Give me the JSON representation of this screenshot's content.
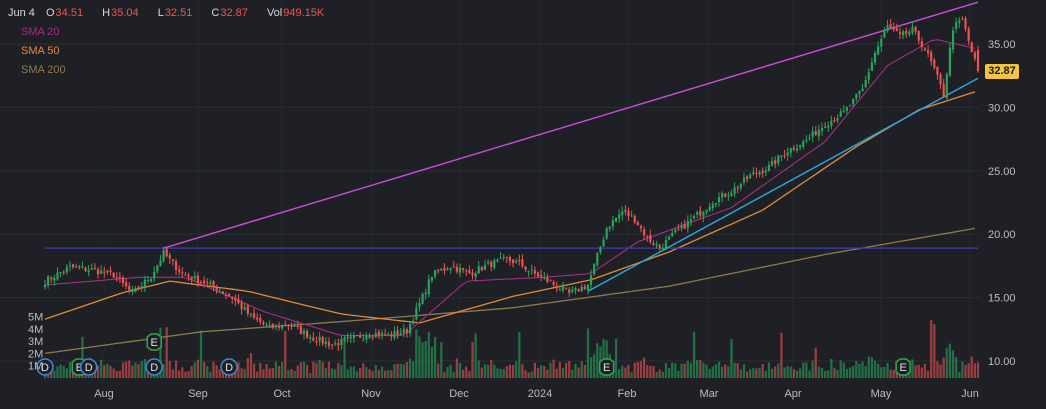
{
  "header": {
    "date": "Jun 4",
    "open_label": "O",
    "open": "34.51",
    "high_label": "H",
    "high": "35.04",
    "low_label": "L",
    "low": "32.51",
    "close_label": "C",
    "close": "32.87",
    "vol_label": "Vol",
    "volume": "949.15K"
  },
  "legend": {
    "sma20": "SMA 20",
    "sma50": "SMA 50",
    "sma200": "SMA 200"
  },
  "current_price": "32.87",
  "colors": {
    "up": "#26a65b",
    "down": "#ef5350",
    "sma20": "#a0307e",
    "sma50": "#e08b3a",
    "sma200": "#8c7a4a",
    "trend_upper": "#c94fd6",
    "trend_lower": "#2aa8e0",
    "horizontal": "#3b3fb0",
    "badge": "#f5c542"
  },
  "icons": [
    "earnings-icon",
    "dividend-icon"
  ],
  "chart_data": {
    "type": "candlestick",
    "price_ticks": [
      "35.00",
      "30.00",
      "25.00",
      "20.00",
      "15.00",
      "10.00"
    ],
    "volume_ticks": [
      "5M",
      "4M",
      "3M",
      "2M",
      "1M"
    ],
    "x_ticks": [
      "Aug",
      "Sep",
      "Oct",
      "Nov",
      "Dec",
      "2024",
      "Feb",
      "Mar",
      "Apr",
      "May",
      "Jun"
    ],
    "ylim": [
      8.5,
      38.5
    ],
    "horizontal_level": 18.9,
    "close_anchors": [
      [
        0,
        16.3
      ],
      [
        8,
        17.4
      ],
      [
        15,
        17.2
      ],
      [
        22,
        16.8
      ],
      [
        28,
        15.3
      ],
      [
        34,
        16.7
      ],
      [
        38,
        18.5
      ],
      [
        44,
        16.9
      ],
      [
        52,
        16.1
      ],
      [
        60,
        15.0
      ],
      [
        66,
        13.5
      ],
      [
        72,
        12.6
      ],
      [
        78,
        12.9
      ],
      [
        86,
        11.8
      ],
      [
        92,
        11.3
      ],
      [
        98,
        11.7
      ],
      [
        104,
        12.2
      ],
      [
        110,
        12.0
      ],
      [
        116,
        12.4
      ],
      [
        120,
        14.5
      ],
      [
        124,
        16.8
      ],
      [
        130,
        17.5
      ],
      [
        136,
        16.9
      ],
      [
        142,
        17.6
      ],
      [
        148,
        18.0
      ],
      [
        152,
        17.7
      ],
      [
        156,
        17.0
      ],
      [
        162,
        16.2
      ],
      [
        168,
        15.3
      ],
      [
        174,
        16.0
      ],
      [
        180,
        20.5
      ],
      [
        185,
        21.8
      ],
      [
        189,
        21.2
      ],
      [
        193,
        19.7
      ],
      [
        197,
        18.9
      ],
      [
        202,
        20.1
      ],
      [
        208,
        21.3
      ],
      [
        214,
        22.6
      ],
      [
        220,
        23.4
      ],
      [
        226,
        24.6
      ],
      [
        232,
        25.3
      ],
      [
        238,
        26.6
      ],
      [
        244,
        27.4
      ],
      [
        250,
        28.7
      ],
      [
        256,
        29.6
      ],
      [
        262,
        31.4
      ],
      [
        266,
        34.3
      ],
      [
        270,
        36.4
      ],
      [
        274,
        35.6
      ],
      [
        278,
        36.1
      ],
      [
        282,
        34.6
      ],
      [
        285,
        33.0
      ],
      [
        288,
        31.0
      ],
      [
        291,
        36.3
      ],
      [
        294,
        36.9
      ],
      [
        297,
        34.4
      ],
      [
        299,
        32.87
      ]
    ],
    "sma20": [
      [
        0,
        16.0
      ],
      [
        30,
        16.6
      ],
      [
        45,
        16.6
      ],
      [
        70,
        13.9
      ],
      [
        95,
        12.0
      ],
      [
        115,
        12.0
      ],
      [
        135,
        16.3
      ],
      [
        160,
        16.6
      ],
      [
        175,
        16.9
      ],
      [
        190,
        19.4
      ],
      [
        220,
        22.1
      ],
      [
        250,
        27.3
      ],
      [
        270,
        33.3
      ],
      [
        285,
        35.4
      ],
      [
        299,
        34.6
      ]
    ],
    "sma50": [
      [
        0,
        13.3
      ],
      [
        25,
        15.4
      ],
      [
        40,
        16.3
      ],
      [
        65,
        15.5
      ],
      [
        95,
        13.7
      ],
      [
        120,
        13.0
      ],
      [
        150,
        15.1
      ],
      [
        175,
        16.4
      ],
      [
        200,
        18.6
      ],
      [
        230,
        21.9
      ],
      [
        260,
        26.9
      ],
      [
        280,
        29.8
      ],
      [
        299,
        31.3
      ]
    ],
    "sma200": [
      [
        0,
        10.6
      ],
      [
        50,
        12.3
      ],
      [
        100,
        13.2
      ],
      [
        150,
        14.2
      ],
      [
        200,
        15.9
      ],
      [
        250,
        18.4
      ],
      [
        299,
        20.5
      ]
    ],
    "trend_upper": [
      [
        38,
        18.9
      ],
      [
        299,
        38.3
      ]
    ],
    "trend_lower": [
      [
        174,
        15.5
      ],
      [
        299,
        32.3
      ]
    ],
    "events": [
      {
        "type": "dividend",
        "glyph": "D",
        "x": 0,
        "row": "bottom"
      },
      {
        "type": "earnings",
        "glyph": "E",
        "x": 11,
        "row": "bottom"
      },
      {
        "type": "dividend",
        "glyph": "D",
        "x": 14,
        "row": "bottom"
      },
      {
        "type": "earnings",
        "glyph": "E",
        "x": 35,
        "row": "upper"
      },
      {
        "type": "dividend",
        "glyph": "D",
        "x": 35,
        "row": "bottom"
      },
      {
        "type": "dividend",
        "glyph": "D",
        "x": 59,
        "row": "bottom"
      },
      {
        "type": "earnings",
        "glyph": "E",
        "x": 180,
        "row": "bottom"
      },
      {
        "type": "earnings",
        "glyph": "E",
        "x": 275,
        "row": "bottom"
      }
    ]
  }
}
